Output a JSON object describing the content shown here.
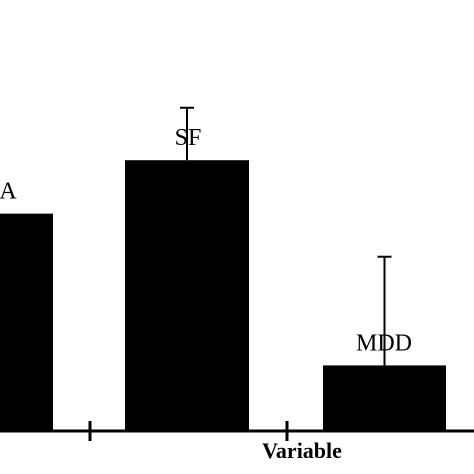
{
  "chart_data": {
    "type": "bar",
    "title": "",
    "xlabel": "Variable",
    "ylabel": "",
    "categories": [
      "A",
      "SF",
      "MDD"
    ],
    "values": [
      2.32,
      2.89,
      0.7
    ],
    "error_upper": [
      null,
      3.45,
      1.86
    ],
    "ylim": [
      0,
      4.6
    ],
    "grid": false,
    "legend": "none",
    "colors": {
      "bar": "#000000",
      "axis": "#000000",
      "background": "#ffffff"
    }
  }
}
